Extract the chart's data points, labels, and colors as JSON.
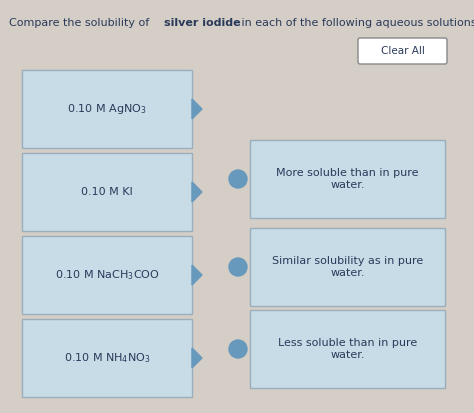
{
  "title_plain1": "Compare the solubility of ",
  "title_bold": "silver iodide",
  "title_plain2": " in each of the following aqueous solutions:",
  "bg_color": "#d4cec6",
  "panel_bg": "#cdc8c0",
  "box_bg": "#c8dce8",
  "box_border": "#9aafbb",
  "left_labels": [
    "0.10 M AgNO$_3$",
    "0.10 M KI",
    "0.10 M NaCH$_3$COO",
    "0.10 M NH$_4$NO$_3$"
  ],
  "right_labels": [
    "More soluble than in pure\nwater.",
    "Similar solubility as in pure\nwater.",
    "Less soluble than in pure\nwater."
  ],
  "clear_all_text": "Clear All",
  "dot_color": "#6699bb",
  "text_color": "#2a3a5a",
  "font_size": 7.5,
  "title_font_size": 8
}
